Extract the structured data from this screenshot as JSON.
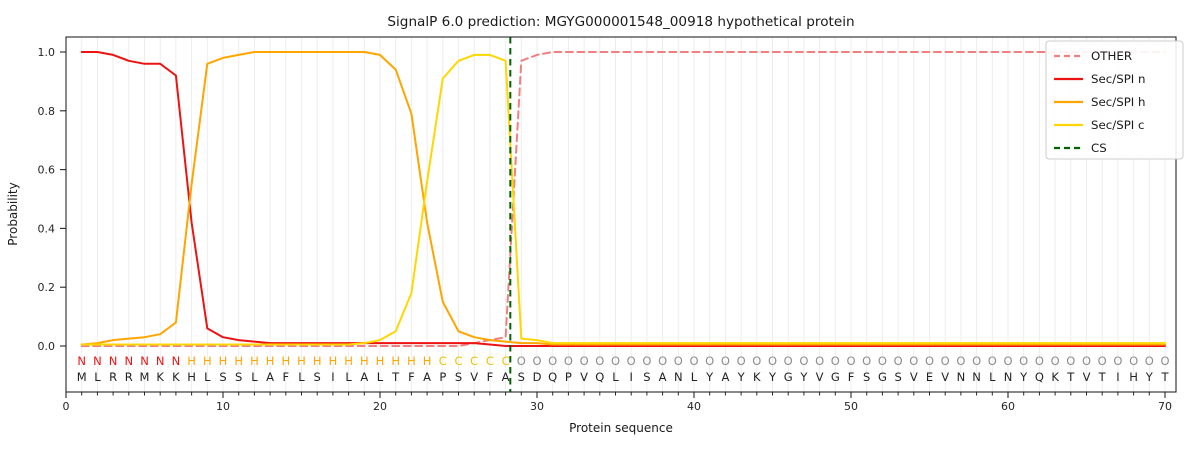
{
  "figure": {
    "title": "SignalP 6.0 prediction: MGYG000001548_00918 hypothetical protein",
    "xlabel": "Protein sequence",
    "ylabel": "Probability"
  },
  "legend": {
    "items": [
      {
        "label": "OTHER",
        "color": "#f08080",
        "dashed": true
      },
      {
        "label": "Sec/SPI n",
        "color": "#ec1313",
        "dashed": false
      },
      {
        "label": "Sec/SPI h",
        "color": "#ffa500",
        "dashed": false
      },
      {
        "label": "Sec/SPI c",
        "color": "#ffd700",
        "dashed": false
      },
      {
        "label": "CS",
        "color": "#006400",
        "dashed": true
      }
    ]
  },
  "chart_data": {
    "type": "line",
    "title": "SignalP 6.0 prediction: MGYG000001548_00918 hypothetical protein",
    "xlabel": "Protein sequence",
    "ylabel": "Probability",
    "x_start": 1,
    "x_ticks": [
      0,
      10,
      20,
      30,
      40,
      50,
      60,
      70
    ],
    "y_ticks": [
      "0.0",
      "0.2",
      "0.4",
      "0.6",
      "0.8",
      "1.0"
    ],
    "xlim": [
      0,
      70.7
    ],
    "ylim": [
      -0.156,
      1.051
    ],
    "grid": "faint vertical gridline at every residue position 1-70",
    "legend_position": "upper right",
    "series": [
      {
        "name": "OTHER",
        "color": "#f08080",
        "style": "dashed",
        "values": [
          0,
          0,
          0,
          0,
          0,
          0,
          0,
          0,
          0,
          0,
          0,
          0,
          0,
          0,
          0,
          0,
          0,
          0,
          0,
          0,
          0,
          0,
          0,
          0,
          0,
          0.01,
          0.02,
          0.03,
          0.97,
          0.99,
          1,
          1,
          1,
          1,
          1,
          1,
          1,
          1,
          1,
          1,
          1,
          1,
          1,
          1,
          1,
          1,
          1,
          1,
          1,
          1,
          1,
          1,
          1,
          1,
          1,
          1,
          1,
          1,
          1,
          1,
          1,
          1,
          1,
          1,
          1,
          1,
          1,
          1,
          1,
          1
        ]
      },
      {
        "name": "Sec/SPI n",
        "color": "#ec1313",
        "style": "solid",
        "values": [
          1,
          1,
          0.99,
          0.97,
          0.96,
          0.96,
          0.92,
          0.42,
          0.06,
          0.03,
          0.02,
          0.015,
          0.01,
          0.01,
          0.01,
          0.01,
          0.01,
          0.01,
          0.01,
          0.01,
          0.01,
          0.01,
          0.01,
          0.01,
          0.01,
          0.01,
          0.005,
          0,
          0,
          0,
          0,
          0,
          0,
          0,
          0,
          0,
          0,
          0,
          0,
          0,
          0,
          0,
          0,
          0,
          0,
          0,
          0,
          0,
          0,
          0,
          0,
          0,
          0,
          0,
          0,
          0,
          0,
          0,
          0,
          0,
          0,
          0,
          0,
          0,
          0,
          0,
          0,
          0,
          0,
          0
        ]
      },
      {
        "name": "Sec/SPI h",
        "color": "#ffa500",
        "style": "solid",
        "values": [
          0.005,
          0.01,
          0.02,
          0.025,
          0.03,
          0.04,
          0.08,
          0.55,
          0.96,
          0.98,
          0.99,
          1,
          1,
          1,
          1,
          1,
          1,
          1,
          1,
          0.99,
          0.94,
          0.79,
          0.42,
          0.15,
          0.05,
          0.03,
          0.02,
          0.015,
          0.01,
          0.01,
          0.005,
          0.005,
          0.005,
          0.005,
          0.005,
          0.005,
          0.005,
          0.005,
          0.005,
          0.005,
          0.005,
          0.005,
          0.005,
          0.005,
          0.005,
          0.005,
          0.005,
          0.005,
          0.005,
          0.005,
          0.005,
          0.005,
          0.005,
          0.005,
          0.005,
          0.005,
          0.005,
          0.005,
          0.005,
          0.005,
          0.005,
          0.005,
          0.005,
          0.005,
          0.005,
          0.005,
          0.005,
          0.005,
          0.005,
          0.005
        ]
      },
      {
        "name": "Sec/SPI c",
        "color": "#ffd700",
        "style": "solid",
        "values": [
          0.005,
          0.005,
          0.005,
          0.005,
          0.005,
          0.005,
          0.005,
          0.005,
          0.005,
          0.005,
          0.005,
          0.005,
          0.005,
          0.005,
          0.005,
          0.005,
          0.005,
          0.005,
          0.01,
          0.02,
          0.05,
          0.18,
          0.56,
          0.91,
          0.97,
          0.99,
          0.99,
          0.97,
          0.025,
          0.02,
          0.01,
          0.01,
          0.01,
          0.01,
          0.01,
          0.01,
          0.01,
          0.01,
          0.01,
          0.01,
          0.01,
          0.01,
          0.01,
          0.01,
          0.01,
          0.01,
          0.01,
          0.01,
          0.01,
          0.01,
          0.01,
          0.01,
          0.01,
          0.01,
          0.01,
          0.01,
          0.01,
          0.01,
          0.01,
          0.01,
          0.01,
          0.01,
          0.01,
          0.01,
          0.01,
          0.01,
          0.01,
          0.01,
          0.01,
          0.01
        ]
      }
    ],
    "cs_line": {
      "name": "CS",
      "x": 28.3,
      "color": "#006400",
      "style": "dashed"
    },
    "sequence": "MLRRMKKHLSSLAFLSILALTFAPSVFASDQPVQLISANLYAYKYGYVGFSGSVEVNNLNYQKTVTIHYT",
    "regions": "NNNNNNNHHHHHHHHHHHHHHHHCCCCCOOOOOOOOOOOOOOOOOOOOOOOOOOOOOOOOOOOOOOOOOO",
    "region_colors": {
      "N": "#ec1313",
      "H": "#ffa500",
      "C": "#efc100",
      "O": "#8c8c8c"
    },
    "sequence_color": "#222222",
    "grid_color": "#ededed",
    "axis_color": "#262626"
  }
}
